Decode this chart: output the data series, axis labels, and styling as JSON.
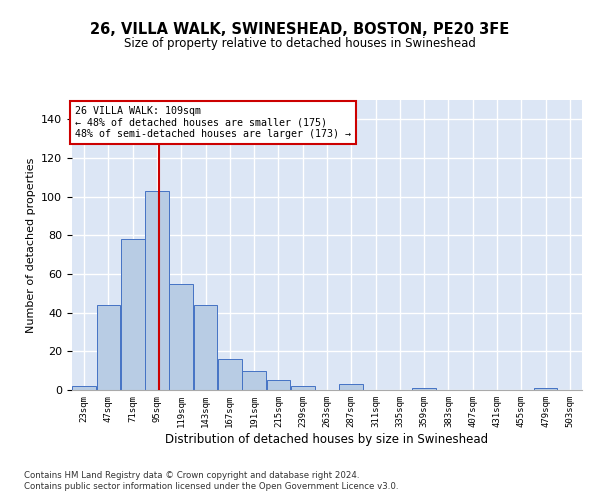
{
  "title": "26, VILLA WALK, SWINESHEAD, BOSTON, PE20 3FE",
  "subtitle": "Size of property relative to detached houses in Swineshead",
  "xlabel": "Distribution of detached houses by size in Swineshead",
  "ylabel": "Number of detached properties",
  "footnote1": "Contains HM Land Registry data © Crown copyright and database right 2024.",
  "footnote2": "Contains public sector information licensed under the Open Government Licence v3.0.",
  "annotation_line1": "26 VILLA WALK: 109sqm",
  "annotation_line2": "← 48% of detached houses are smaller (175)",
  "annotation_line3": "48% of semi-detached houses are larger (173) →",
  "property_size": 109,
  "bin_starts": [
    23,
    47,
    71,
    95,
    119,
    143,
    167,
    191,
    215,
    239,
    263,
    287,
    311,
    335,
    359,
    383,
    407,
    431,
    455,
    479,
    503
  ],
  "bin_width": 24,
  "bar_values": [
    2,
    44,
    78,
    103,
    55,
    44,
    16,
    10,
    5,
    2,
    0,
    3,
    0,
    0,
    1,
    0,
    0,
    0,
    0,
    1,
    0
  ],
  "bar_color": "#b8cce4",
  "bar_edge_color": "#4472c4",
  "vline_color": "#cc0000",
  "vline_x": 109,
  "annotation_box_color": "#cc0000",
  "background_color": "#dce6f5",
  "grid_color": "#ffffff",
  "ylim": [
    0,
    150
  ],
  "yticks": [
    0,
    20,
    40,
    60,
    80,
    100,
    120,
    140
  ]
}
